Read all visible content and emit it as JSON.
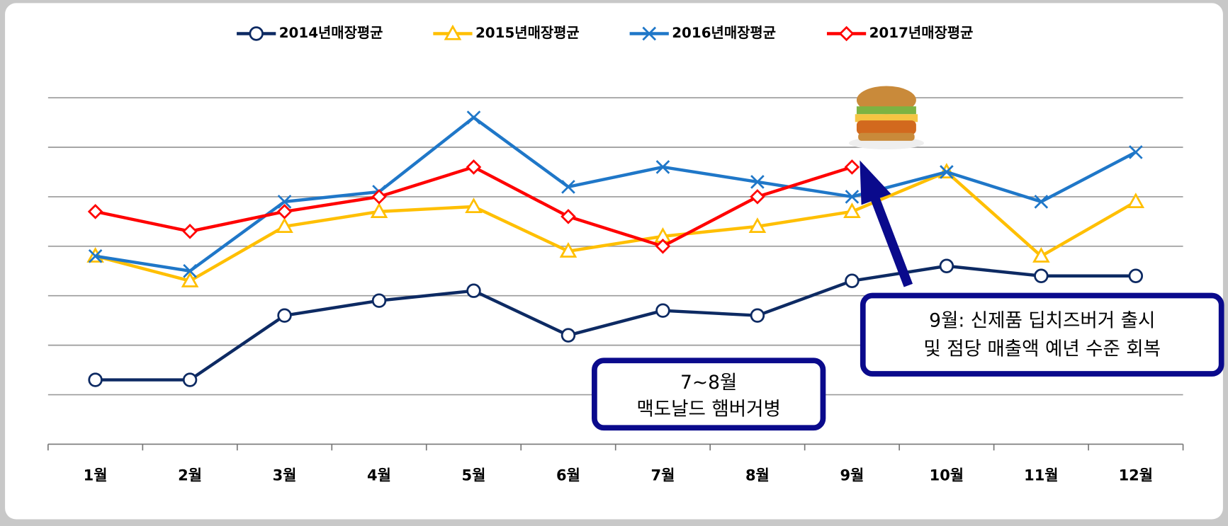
{
  "chart_data": {
    "type": "line",
    "categories": [
      "1월",
      "2월",
      "3월",
      "4월",
      "5월",
      "6월",
      "7월",
      "8월",
      "9월",
      "10월",
      "11월",
      "12월"
    ],
    "series": [
      {
        "name": "2014년매장평균",
        "color": "#0d2a63",
        "marker": "circle",
        "values": [
          1.3,
          1.3,
          2.6,
          2.9,
          3.1,
          2.2,
          2.7,
          2.6,
          3.3,
          3.6,
          3.4,
          3.4
        ]
      },
      {
        "name": "2015년매장평균",
        "color": "#ffbf00",
        "marker": "triangle",
        "values": [
          3.8,
          3.3,
          4.4,
          4.7,
          4.8,
          3.9,
          4.2,
          4.4,
          4.7,
          5.5,
          3.8,
          4.9
        ]
      },
      {
        "name": "2016년매장평균",
        "color": "#1f77c8",
        "marker": "x",
        "values": [
          3.8,
          3.5,
          4.9,
          5.1,
          6.6,
          5.2,
          5.6,
          5.3,
          5.0,
          5.5,
          4.9,
          5.9
        ]
      },
      {
        "name": "2017년매장평균",
        "color": "#ff0000",
        "marker": "diamond",
        "values": [
          4.7,
          4.3,
          4.7,
          5.0,
          5.6,
          4.6,
          4.0,
          5.0,
          5.6,
          null,
          null,
          null
        ]
      }
    ],
    "ylim": [
      0,
      7
    ],
    "yticks": [
      1,
      2,
      3,
      4,
      5,
      6,
      7
    ],
    "grid": true,
    "legend": "top",
    "annotations": [
      {
        "lines": [
          "7~8월",
          "맥도날드 햄버거병"
        ]
      },
      {
        "lines": [
          "9월: 신제품 딥치즈버거 출시",
          "및 점당 매출액 예년 수준 회복"
        ]
      }
    ]
  }
}
